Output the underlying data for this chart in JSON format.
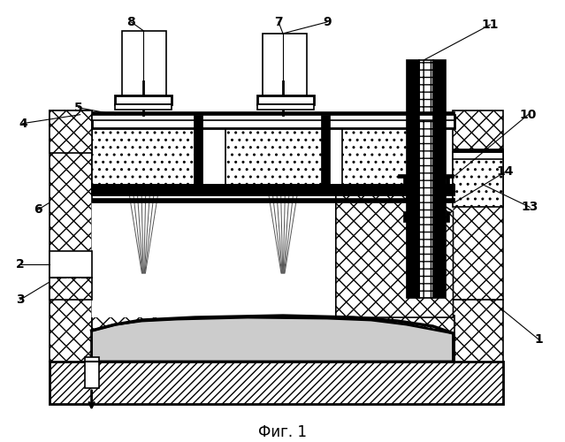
{
  "title": "Фиг. 1",
  "background": "#ffffff",
  "line_color": "#000000"
}
